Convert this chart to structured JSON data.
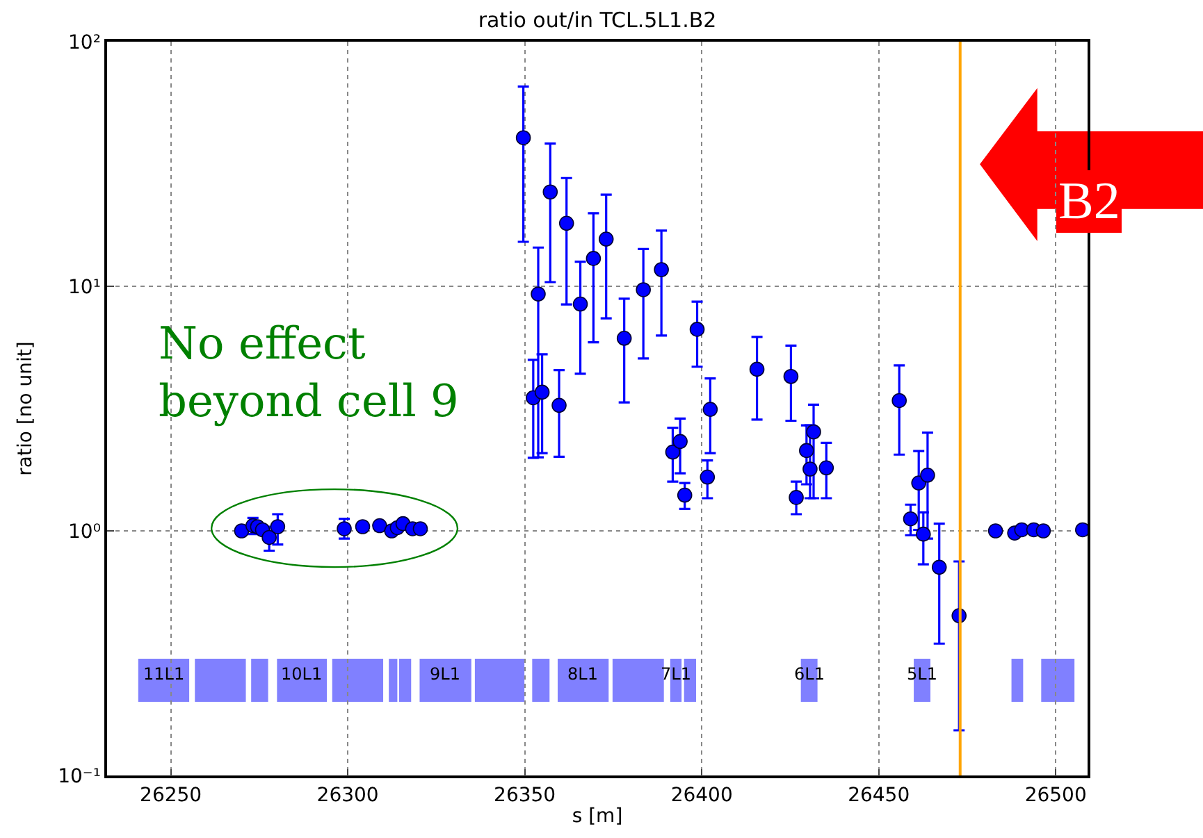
{
  "chart_data": {
    "type": "scatter",
    "title": "ratio out/in TCL.5L1.B2",
    "xlabel": "s [m]",
    "ylabel": "ratio [no unit]",
    "x": [
      26270.0,
      26273.2,
      26274.5,
      26275.9,
      26277.8,
      26280.2,
      26299.0,
      26304.2,
      26309.0,
      26312.4,
      26314.0,
      26315.6,
      26318.3,
      26320.5,
      26349.6,
      26352.4,
      26353.8,
      26354.9,
      26357.2,
      26359.7,
      26361.8,
      26365.7,
      26369.4,
      26373.0,
      26378.1,
      26383.5,
      26388.6,
      26391.8,
      26393.9,
      26395.2,
      26398.7,
      26401.6,
      26402.4,
      26415.6,
      26425.2,
      26426.7,
      26429.6,
      26430.6,
      26431.6,
      26435.2,
      26455.8,
      26459.0,
      26461.3,
      26462.6,
      26463.8,
      26467.1,
      26472.7,
      26483.0,
      26488.4,
      26490.4,
      26493.8,
      26496.5,
      26507.6
    ],
    "series": [
      {
        "color": "#0000ff",
        "values": [
          1.0,
          1.05,
          1.04,
          1.01,
          0.94,
          1.04,
          1.02,
          1.04,
          1.05,
          1.0,
          1.03,
          1.07,
          1.02,
          1.02,
          40.5,
          3.5,
          9.3,
          3.69,
          24.3,
          3.26,
          18.1,
          8.46,
          13.0,
          15.6,
          6.13,
          9.68,
          11.7,
          2.1,
          2.32,
          1.4,
          6.67,
          1.66,
          3.14,
          4.58,
          4.28,
          1.37,
          2.13,
          1.79,
          2.54,
          1.81,
          3.41,
          1.12,
          1.57,
          0.97,
          1.69,
          0.71,
          0.45,
          1.0,
          0.98,
          1.01,
          1.01,
          1.0,
          1.01
        ],
        "errors": [
          null,
          [
            0.97,
            1.13
          ],
          null,
          null,
          [
            0.83,
            1.04
          ],
          [
            0.88,
            1.17
          ],
          [
            0.93,
            1.12
          ],
          null,
          null,
          null,
          null,
          null,
          null,
          null,
          [
            15.2,
            65.5
          ],
          [
            1.99,
            5.0
          ],
          [
            2.0,
            14.4
          ],
          [
            2.08,
            5.27
          ],
          [
            10.4,
            38.3
          ],
          [
            2.01,
            4.54
          ],
          [
            8.43,
            27.7
          ],
          [
            4.39,
            12.6
          ],
          [
            5.9,
            19.9
          ],
          [
            7.4,
            23.7
          ],
          [
            3.35,
            8.9
          ],
          [
            5.07,
            14.2
          ],
          [
            6.29,
            16.9
          ],
          [
            1.59,
            2.64
          ],
          [
            1.72,
            2.88
          ],
          [
            1.23,
            1.57
          ],
          [
            4.69,
            8.65
          ],
          [
            1.36,
            1.94
          ],
          [
            2.08,
            4.2
          ],
          [
            2.85,
            6.21
          ],
          [
            2.82,
            5.72
          ],
          [
            1.17,
            1.59
          ],
          [
            1.55,
            2.7
          ],
          [
            1.36,
            2.7
          ],
          [
            1.36,
            3.28
          ],
          [
            1.36,
            2.29
          ],
          [
            2.05,
            4.75
          ],
          [
            0.96,
            1.28
          ],
          [
            1.01,
            2.12
          ],
          [
            0.73,
            1.19
          ],
          [
            0.93,
            2.52
          ],
          [
            0.346,
            1.07
          ],
          [
            0.153,
            0.75
          ],
          null,
          null,
          null,
          null,
          null,
          null
        ]
      }
    ],
    "marker": "circle",
    "log": "y",
    "xlim": [
      26232,
      26509
    ],
    "xticks": [
      26250,
      26300,
      26350,
      26400,
      26450,
      26500
    ],
    "ylim": [
      0.1,
      100
    ],
    "yticks": [
      {
        "value": 0.1,
        "label": "10⁻¹"
      },
      {
        "value": 1,
        "label": "10⁰"
      },
      {
        "value": 10,
        "label": "10¹"
      },
      {
        "value": 100,
        "label": "10²"
      }
    ],
    "grid": true,
    "ref_lines": [
      {
        "axis": "x",
        "value": 26473,
        "color": "#ffa500"
      }
    ],
    "bands": [
      {
        "axis": "x",
        "from": 26240.8,
        "to": 26255.2,
        "color": "#8080ff",
        "label": "11L1"
      },
      {
        "axis": "x",
        "from": 26256.8,
        "to": 26271.2,
        "color": "#8080ff"
      },
      {
        "axis": "x",
        "from": 26272.7,
        "to": 26277.5,
        "color": "#8080ff"
      },
      {
        "axis": "x",
        "from": 26280.0,
        "to": 26294.1,
        "color": "#8080ff",
        "label": "10L1"
      },
      {
        "axis": "x",
        "from": 26295.6,
        "to": 26310.0,
        "color": "#8080ff"
      },
      {
        "axis": "x",
        "from": 26311.6,
        "to": 26314.0,
        "color": "#8080ff"
      },
      {
        "axis": "x",
        "from": 26314.5,
        "to": 26317.9,
        "color": "#8080ff"
      },
      {
        "axis": "x",
        "from": 26320.3,
        "to": 26334.9,
        "color": "#8080ff",
        "label": "9L1"
      },
      {
        "axis": "x",
        "from": 26335.9,
        "to": 26349.9,
        "color": "#8080ff"
      },
      {
        "axis": "x",
        "from": 26352.1,
        "to": 26357.0,
        "color": "#8080ff"
      },
      {
        "axis": "x",
        "from": 26359.3,
        "to": 26373.7,
        "color": "#8080ff",
        "label": "8L1"
      },
      {
        "axis": "x",
        "from": 26374.8,
        "to": 26389.3,
        "color": "#8080ff"
      },
      {
        "axis": "x",
        "from": 26391.1,
        "to": 26394.3,
        "color": "#8080ff",
        "label": "7L1"
      },
      {
        "axis": "x",
        "from": 26395.0,
        "to": 26398.4,
        "color": "#8080ff"
      },
      {
        "axis": "x",
        "from": 26428.0,
        "to": 26432.7,
        "color": "#8080ff",
        "label": "6L1"
      },
      {
        "axis": "x",
        "from": 26459.9,
        "to": 26464.6,
        "color": "#8080ff",
        "label": "5L1"
      },
      {
        "axis": "x",
        "from": 26487.5,
        "to": 26490.8,
        "color": "#8080ff"
      },
      {
        "axis": "x",
        "from": 26495.9,
        "to": 26505.3,
        "color": "#8080ff"
      }
    ],
    "annotations": [
      "No effect\nbeyond cell 9",
      "B2"
    ]
  }
}
